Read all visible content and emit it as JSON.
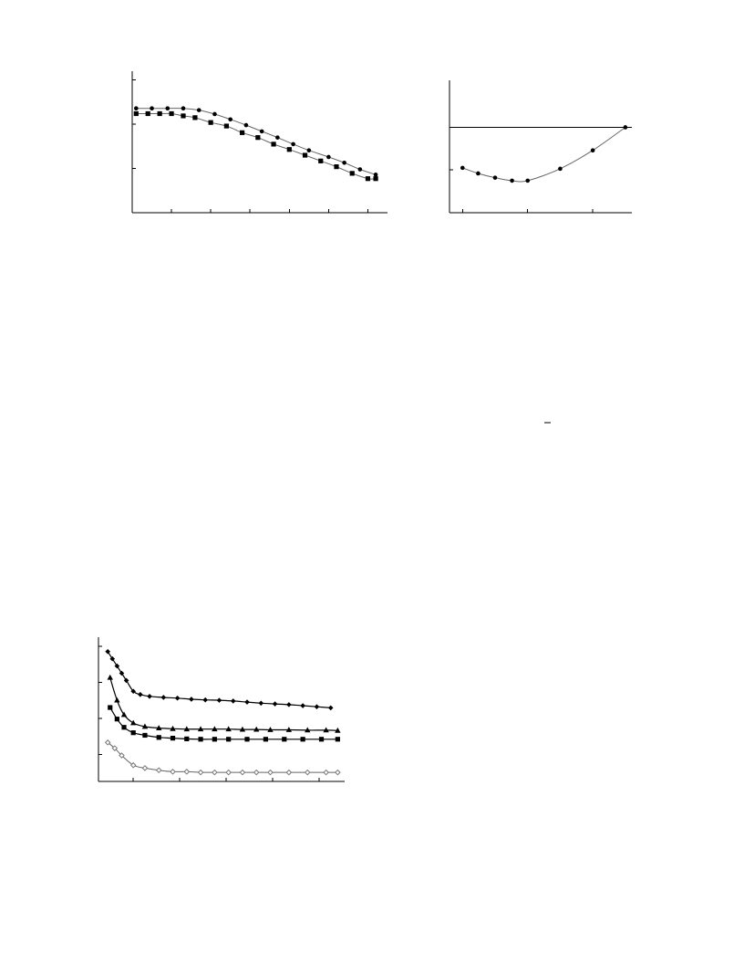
{
  "chart_data": [
    {
      "type": "line",
      "title": "",
      "xlabel": "",
      "ylabel": "",
      "xlim": [
        0,
        6.5
      ],
      "ylim": [
        0,
        3.2
      ],
      "grid": false,
      "xticks": [
        1,
        2,
        3,
        4,
        5,
        6
      ],
      "yticks": [
        1,
        2,
        3
      ],
      "series": [
        {
          "marker": "circle",
          "x": [
            0.1,
            0.5,
            0.9,
            1.3,
            1.7,
            2.1,
            2.5,
            2.9,
            3.3,
            3.7,
            4.1,
            4.5,
            5.0,
            5.4,
            5.8,
            6.2
          ],
          "y": [
            2.36,
            2.36,
            2.36,
            2.36,
            2.32,
            2.23,
            2.11,
            1.98,
            1.84,
            1.7,
            1.55,
            1.41,
            1.26,
            1.13,
            0.98,
            0.86
          ]
        },
        {
          "marker": "square",
          "x": [
            0.1,
            0.4,
            0.7,
            1.0,
            1.3,
            1.6,
            2.0,
            2.4,
            2.8,
            3.2,
            3.6,
            4.0,
            4.4,
            4.8,
            5.2,
            5.6,
            6.0,
            6.2
          ],
          "y": [
            2.24,
            2.24,
            2.24,
            2.24,
            2.19,
            2.15,
            2.04,
            1.96,
            1.81,
            1.7,
            1.55,
            1.43,
            1.3,
            1.17,
            1.04,
            0.89,
            0.77,
            0.77
          ]
        }
      ]
    },
    {
      "type": "line",
      "title": "",
      "xlabel": "",
      "ylabel": "",
      "xlim": [
        0,
        14
      ],
      "ylim": [
        -1,
        2.1
      ],
      "grid": false,
      "xticks": [
        1,
        6,
        11
      ],
      "yticks": [
        -1,
        0,
        1
      ],
      "reference_lines": [
        {
          "y": 1
        }
      ],
      "series": [
        {
          "marker": "circle",
          "x": [
            1,
            2.2,
            3.5,
            4.8,
            6,
            8.5,
            11,
            13.5
          ],
          "y": [
            0.05,
            -0.08,
            -0.18,
            -0.25,
            -0.25,
            0.03,
            0.46,
            1.0
          ]
        }
      ]
    },
    {
      "type": "line",
      "title": "",
      "xlabel": "",
      "ylabel": "",
      "xlim": [
        0,
        5.3
      ],
      "ylim": [
        0,
        4
      ],
      "grid": false,
      "xticks": [
        0.75,
        1.75,
        2.75,
        3.75,
        4.75
      ],
      "yticks": [
        0.75,
        1.75,
        2.75,
        3.75
      ],
      "series": [
        {
          "marker": "filled-diamond",
          "x": [
            0.2,
            0.3,
            0.4,
            0.5,
            0.6,
            0.75,
            0.9,
            1.1,
            1.4,
            1.7,
            2.0,
            2.3,
            2.6,
            2.9,
            3.2,
            3.5,
            3.8,
            4.1,
            4.4,
            4.7,
            5.0
          ],
          "y": [
            3.6,
            3.4,
            3.2,
            3.0,
            2.8,
            2.5,
            2.41,
            2.36,
            2.33,
            2.31,
            2.28,
            2.26,
            2.25,
            2.23,
            2.2,
            2.17,
            2.15,
            2.13,
            2.1,
            2.07,
            2.04
          ]
        },
        {
          "marker": "triangle",
          "x": [
            0.25,
            0.4,
            0.55,
            0.75,
            1.0,
            1.3,
            1.6,
            1.9,
            2.2,
            2.5,
            2.8,
            3.1,
            3.4,
            3.7,
            4.1,
            4.5,
            4.9,
            5.15
          ],
          "y": [
            2.88,
            2.25,
            1.85,
            1.62,
            1.52,
            1.48,
            1.46,
            1.45,
            1.45,
            1.45,
            1.45,
            1.44,
            1.44,
            1.43,
            1.43,
            1.42,
            1.42,
            1.41
          ]
        },
        {
          "marker": "square",
          "x": [
            0.25,
            0.4,
            0.55,
            0.75,
            1.0,
            1.3,
            1.6,
            1.9,
            2.2,
            2.5,
            2.8,
            3.2,
            3.6,
            4.0,
            4.4,
            4.8,
            5.15
          ],
          "y": [
            2.05,
            1.73,
            1.5,
            1.35,
            1.28,
            1.22,
            1.2,
            1.18,
            1.17,
            1.17,
            1.17,
            1.17,
            1.17,
            1.17,
            1.17,
            1.17,
            1.17
          ]
        },
        {
          "marker": "open-diamond",
          "x": [
            0.2,
            0.35,
            0.5,
            0.75,
            1.0,
            1.3,
            1.6,
            1.9,
            2.2,
            2.5,
            2.8,
            3.1,
            3.4,
            3.7,
            4.1,
            4.5,
            4.9,
            5.15
          ],
          "y": [
            1.08,
            0.92,
            0.72,
            0.45,
            0.37,
            0.31,
            0.27,
            0.27,
            0.25,
            0.25,
            0.25,
            0.25,
            0.25,
            0.25,
            0.25,
            0.25,
            0.25,
            0.25
          ]
        }
      ]
    }
  ]
}
